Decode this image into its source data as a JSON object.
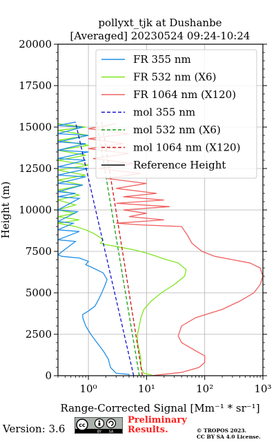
{
  "chart_data": {
    "type": "line",
    "title_line1": "pollyxt_tjk at Dushanbe",
    "title_line2": "[Averaged] 20230524 09:24-10:24",
    "xlabel": "Range-Corrected Signal [Mm⁻¹ * sr⁻¹]",
    "ylabel": "Height (m)",
    "xscale": "log",
    "xlim": [
      0.3,
      1000
    ],
    "ylim": [
      0,
      20000
    ],
    "xticks": [
      {
        "v": 1,
        "label": "10⁰"
      },
      {
        "v": 10,
        "label": "10¹"
      },
      {
        "v": 100,
        "label": "10²"
      },
      {
        "v": 1000,
        "label": "10³"
      }
    ],
    "yticks": [
      {
        "v": 0,
        "label": "0"
      },
      {
        "v": 2500,
        "label": "2500"
      },
      {
        "v": 5000,
        "label": "5000"
      },
      {
        "v": 7500,
        "label": "7500"
      },
      {
        "v": 10000,
        "label": "10000"
      },
      {
        "v": 12500,
        "label": "12500"
      },
      {
        "v": 15000,
        "label": "15000"
      },
      {
        "v": 17500,
        "label": "17500"
      },
      {
        "v": 20000,
        "label": "20000"
      }
    ],
    "grid": true,
    "legend_position": "top-right",
    "series": [
      {
        "name": "FR 355 nm",
        "color": "#1f8fe6",
        "style": "solid",
        "points": [
          [
            5,
            0
          ],
          [
            5,
            80
          ],
          [
            3,
            150
          ],
          [
            2.4,
            500
          ],
          [
            2.2,
            1000
          ],
          [
            1.8,
            1500
          ],
          [
            1.4,
            2000
          ],
          [
            1.1,
            2500
          ],
          [
            0.9,
            3000
          ],
          [
            0.8,
            3500
          ],
          [
            0.8,
            3700
          ],
          [
            1.0,
            3900
          ],
          [
            1.3,
            4200
          ],
          [
            1.5,
            4600
          ],
          [
            1.7,
            5000
          ],
          [
            1.9,
            5400
          ],
          [
            2.1,
            5800
          ],
          [
            1.8,
            6200
          ],
          [
            1.2,
            6500
          ],
          [
            0.9,
            6700
          ],
          [
            1.0,
            6900
          ],
          [
            0.7,
            7100
          ],
          [
            0.35,
            7200
          ],
          [
            0.3,
            7300
          ],
          [
            0.6,
            8100
          ],
          [
            0.3,
            8200
          ],
          [
            0.7,
            8700
          ],
          [
            0.3,
            8800
          ],
          [
            0.55,
            9200
          ],
          [
            0.3,
            9300
          ],
          [
            0.65,
            9900
          ],
          [
            0.3,
            10000
          ],
          [
            0.7,
            10700
          ],
          [
            0.3,
            10800
          ],
          [
            0.6,
            11000
          ],
          [
            0.3,
            11100
          ],
          [
            0.8,
            11500
          ],
          [
            0.3,
            11600
          ],
          [
            0.9,
            12000
          ],
          [
            0.3,
            12100
          ],
          [
            1.0,
            12500
          ],
          [
            0.3,
            12600
          ],
          [
            0.9,
            13000
          ],
          [
            0.3,
            13100
          ],
          [
            1.0,
            13500
          ],
          [
            0.3,
            13600
          ],
          [
            0.9,
            14000
          ],
          [
            0.3,
            14100
          ],
          [
            1.0,
            14500
          ],
          [
            0.3,
            14600
          ],
          [
            0.8,
            15000
          ],
          [
            0.3,
            15100
          ],
          [
            0.6,
            15300
          ]
        ]
      },
      {
        "name": "FR 532 nm (X6)",
        "color": "#7ee61f",
        "style": "solid",
        "points": [
          [
            12,
            0
          ],
          [
            12,
            60
          ],
          [
            9,
            150
          ],
          [
            8,
            500
          ],
          [
            8,
            1000
          ],
          [
            7.5,
            1500
          ],
          [
            7,
            2000
          ],
          [
            7,
            2500
          ],
          [
            7.5,
            3000
          ],
          [
            8,
            3500
          ],
          [
            9,
            4000
          ],
          [
            12,
            4500
          ],
          [
            18,
            5000
          ],
          [
            30,
            5500
          ],
          [
            45,
            6000
          ],
          [
            48,
            6400
          ],
          [
            35,
            6800
          ],
          [
            22,
            7000
          ],
          [
            15,
            7200
          ],
          [
            10,
            7400
          ],
          [
            6,
            7600
          ],
          [
            3,
            7800
          ],
          [
            2,
            7900
          ],
          [
            1.6,
            8000
          ],
          [
            1.8,
            8200
          ],
          [
            1.5,
            8400
          ],
          [
            1.2,
            8600
          ],
          [
            0.9,
            8800
          ],
          [
            0.6,
            9000
          ],
          [
            0.3,
            9200
          ],
          [
            0.7,
            9400
          ],
          [
            0.3,
            9600
          ],
          [
            0.6,
            9800
          ],
          [
            0.3,
            10000
          ],
          [
            0.6,
            10300
          ],
          [
            0.3,
            10600
          ],
          [
            0.7,
            10900
          ],
          [
            0.3,
            11200
          ],
          [
            0.8,
            11500
          ],
          [
            0.3,
            11800
          ],
          [
            0.9,
            12100
          ],
          [
            0.3,
            12400
          ],
          [
            1.0,
            12700
          ],
          [
            0.3,
            13000
          ],
          [
            0.9,
            13300
          ],
          [
            0.3,
            13600
          ],
          [
            1.0,
            13900
          ],
          [
            0.3,
            14200
          ],
          [
            1.0,
            14500
          ],
          [
            0.3,
            14800
          ],
          [
            0.9,
            15000
          ],
          [
            0.3,
            15200
          ]
        ]
      },
      {
        "name": "FR 1064 nm (X120)",
        "color": "#f06060",
        "style": "solid",
        "points": [
          [
            12,
            0
          ],
          [
            40,
            200
          ],
          [
            80,
            500
          ],
          [
            100,
            800
          ],
          [
            100,
            1200
          ],
          [
            70,
            1500
          ],
          [
            50,
            1800
          ],
          [
            40,
            2000
          ],
          [
            35,
            2400
          ],
          [
            40,
            3000
          ],
          [
            70,
            3500
          ],
          [
            200,
            4000
          ],
          [
            400,
            4500
          ],
          [
            700,
            5000
          ],
          [
            900,
            5500
          ],
          [
            1000,
            6000
          ],
          [
            900,
            6500
          ],
          [
            600,
            6800
          ],
          [
            300,
            7000
          ],
          [
            150,
            7200
          ],
          [
            90,
            7500
          ],
          [
            70,
            7800
          ],
          [
            60,
            8000
          ],
          [
            50,
            8500
          ],
          [
            40,
            9000
          ],
          [
            8,
            9100
          ],
          [
            3,
            9200
          ],
          [
            20,
            9400
          ],
          [
            5,
            9600
          ],
          [
            10,
            9800
          ],
          [
            4,
            10000
          ],
          [
            25,
            10200
          ],
          [
            3,
            10400
          ],
          [
            20,
            10600
          ],
          [
            4,
            10800
          ],
          [
            15,
            11000
          ],
          [
            3,
            11300
          ],
          [
            10,
            11600
          ],
          [
            2,
            11900
          ],
          [
            8,
            12200
          ],
          [
            1.5,
            12500
          ],
          [
            6,
            12800
          ],
          [
            1.2,
            13100
          ],
          [
            5,
            13400
          ],
          [
            1,
            13700
          ],
          [
            4,
            14000
          ],
          [
            1,
            14300
          ],
          [
            5,
            14600
          ],
          [
            1,
            14900
          ],
          [
            3,
            15200
          ]
        ]
      },
      {
        "name": "mol 355 nm",
        "color": "#1010cc",
        "style": "dashed",
        "points": [
          [
            6,
            0
          ],
          [
            0.6,
            15300
          ]
        ]
      },
      {
        "name": "mol 532 nm (X6)",
        "color": "#10a010",
        "style": "dashed",
        "points": [
          [
            7.5,
            0
          ],
          [
            1.4,
            15300
          ]
        ]
      },
      {
        "name": "mol 1064 nm (X120)",
        "color": "#cc1010",
        "style": "dashed",
        "points": [
          [
            8.5,
            0
          ],
          [
            1.7,
            15300
          ]
        ]
      },
      {
        "name": "Reference Height",
        "color": "#000000",
        "style": "solid",
        "points": []
      }
    ]
  },
  "footer": {
    "version": "Version: 3.6",
    "license_badge": "cc BY SA",
    "preliminary_line1": "Preliminary",
    "preliminary_line2": "Results.",
    "copyright_line1": "© TROPOS 2023.",
    "copyright_line2": "CC BY SA 4.0 License."
  }
}
